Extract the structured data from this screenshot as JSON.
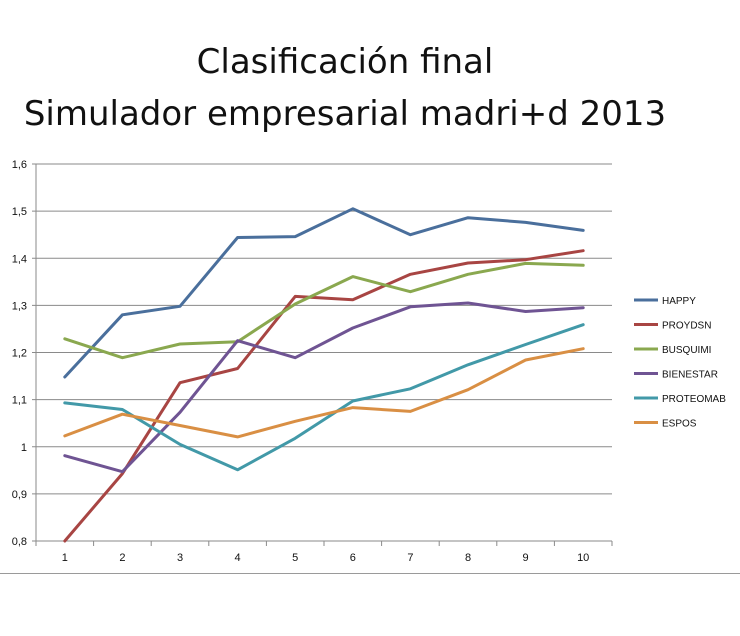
{
  "chart_data": {
    "type": "line",
    "title": "Clasificación final",
    "subtitle": "Simulador empresarial madri+d 2013",
    "x": [
      1,
      2,
      3,
      4,
      5,
      6,
      7,
      8,
      9,
      10
    ],
    "x_tick_labels": [
      "1",
      "2",
      "3",
      "4",
      "5",
      "6",
      "7",
      "8",
      "9",
      "10"
    ],
    "ylim": [
      0.8,
      1.6
    ],
    "y_ticks": [
      0.8,
      0.9,
      1.0,
      1.1,
      1.2,
      1.3,
      1.4,
      1.5,
      1.6
    ],
    "y_tick_labels": [
      "0,8",
      "0,9",
      "1",
      "1,1",
      "1,2",
      "1,3",
      "1,4",
      "1,5",
      "1,6"
    ],
    "grid": "horizontal",
    "legend_position": "right",
    "xlabel": "",
    "ylabel": "",
    "series": [
      {
        "name": "HAPPY",
        "color": "#4a6f9c",
        "values": [
          1.148,
          1.28,
          1.298,
          1.444,
          1.446,
          1.505,
          1.45,
          1.486,
          1.476,
          1.459
        ]
      },
      {
        "name": "PROYDSN",
        "color": "#a84543",
        "values": [
          0.8,
          0.943,
          1.136,
          1.166,
          1.319,
          1.312,
          1.366,
          1.39,
          1.397,
          1.416
        ]
      },
      {
        "name": "BUSQUIMI",
        "color": "#8aa84f",
        "values": [
          1.229,
          1.189,
          1.218,
          1.223,
          1.303,
          1.361,
          1.329,
          1.366,
          1.389,
          1.385
        ]
      },
      {
        "name": "BIENESTAR",
        "color": "#6f5493",
        "values": [
          0.981,
          0.947,
          1.073,
          1.225,
          1.189,
          1.252,
          1.297,
          1.305,
          1.287,
          1.295
        ]
      },
      {
        "name": "PROTEOMAB",
        "color": "#4299a8",
        "values": [
          1.093,
          1.079,
          1.005,
          0.951,
          1.018,
          1.097,
          1.123,
          1.174,
          1.217,
          1.259
        ]
      },
      {
        "name": "ESPOS",
        "color": "#d98f44",
        "values": [
          1.023,
          1.069,
          1.045,
          1.021,
          1.054,
          1.083,
          1.075,
          1.121,
          1.184,
          1.208
        ]
      }
    ]
  }
}
